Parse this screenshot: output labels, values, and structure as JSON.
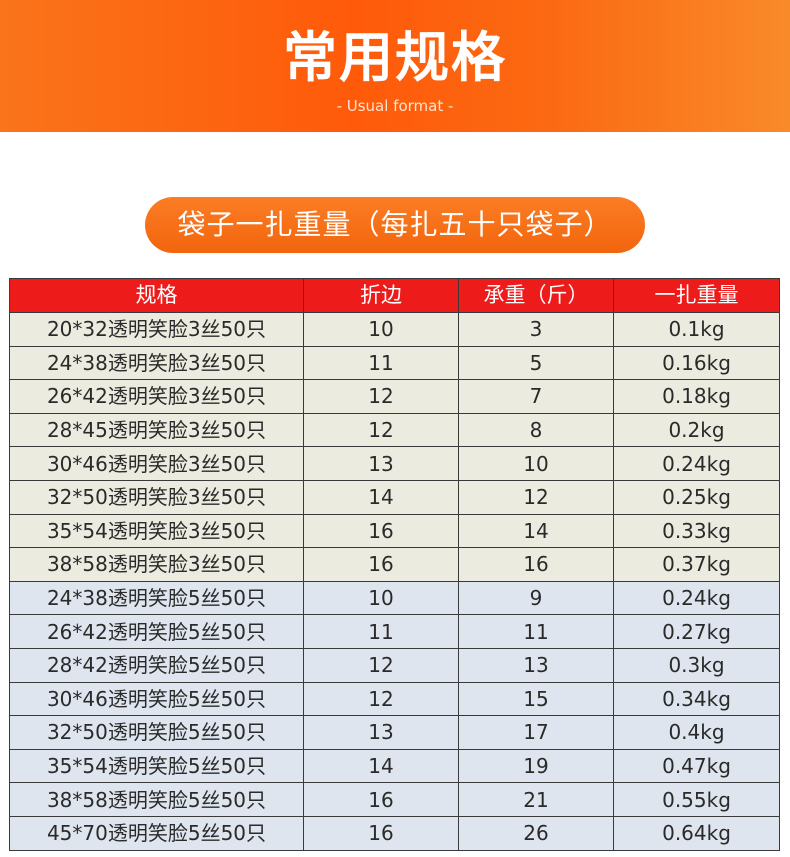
{
  "banner": {
    "title": "常用规格",
    "subtitle": "- Usual format -"
  },
  "section": {
    "heading": "袋子一扎重量（每扎五十只袋子）"
  },
  "table": {
    "headers": [
      "规格",
      "折边",
      "承重（斤）",
      "一扎重量"
    ],
    "rows": [
      {
        "spec": "20*32透明笑脸3丝50只",
        "fold": "10",
        "load": "3",
        "weight": "0.1kg",
        "group": "g1"
      },
      {
        "spec": "24*38透明笑脸3丝50只",
        "fold": "11",
        "load": "5",
        "weight": "0.16kg",
        "group": "g1"
      },
      {
        "spec": "26*42透明笑脸3丝50只",
        "fold": "12",
        "load": "7",
        "weight": "0.18kg",
        "group": "g1"
      },
      {
        "spec": "28*45透明笑脸3丝50只",
        "fold": "12",
        "load": "8",
        "weight": "0.2kg",
        "group": "g1"
      },
      {
        "spec": "30*46透明笑脸3丝50只",
        "fold": "13",
        "load": "10",
        "weight": "0.24kg",
        "group": "g1"
      },
      {
        "spec": "32*50透明笑脸3丝50只",
        "fold": "14",
        "load": "12",
        "weight": "0.25kg",
        "group": "g1"
      },
      {
        "spec": "35*54透明笑脸3丝50只",
        "fold": "16",
        "load": "14",
        "weight": "0.33kg",
        "group": "g1"
      },
      {
        "spec": "38*58透明笑脸3丝50只",
        "fold": "16",
        "load": "16",
        "weight": "0.37kg",
        "group": "g1"
      },
      {
        "spec": "24*38透明笑脸5丝50只",
        "fold": "10",
        "load": "9",
        "weight": "0.24kg",
        "group": "g2"
      },
      {
        "spec": "26*42透明笑脸5丝50只",
        "fold": "11",
        "load": "11",
        "weight": "0.27kg",
        "group": "g2"
      },
      {
        "spec": "28*42透明笑脸5丝50只",
        "fold": "12",
        "load": "13",
        "weight": "0.3kg",
        "group": "g2"
      },
      {
        "spec": "30*46透明笑脸5丝50只",
        "fold": "12",
        "load": "15",
        "weight": "0.34kg",
        "group": "g2"
      },
      {
        "spec": "32*50透明笑脸5丝50只",
        "fold": "13",
        "load": "17",
        "weight": "0.4kg",
        "group": "g2"
      },
      {
        "spec": "35*54透明笑脸5丝50只",
        "fold": "14",
        "load": "19",
        "weight": "0.47kg",
        "group": "g2"
      },
      {
        "spec": "38*58透明笑脸5丝50只",
        "fold": "16",
        "load": "21",
        "weight": "0.55kg",
        "group": "g2"
      },
      {
        "spec": "45*70透明笑脸5丝50只",
        "fold": "16",
        "load": "26",
        "weight": "0.64kg",
        "group": "g2"
      }
    ]
  },
  "colors": {
    "banner": "#ff5a0a",
    "pill": "#f97316",
    "header_row": "#ee1b1b",
    "group1_row": "#ecebe0",
    "group2_row": "#dee5ee"
  }
}
